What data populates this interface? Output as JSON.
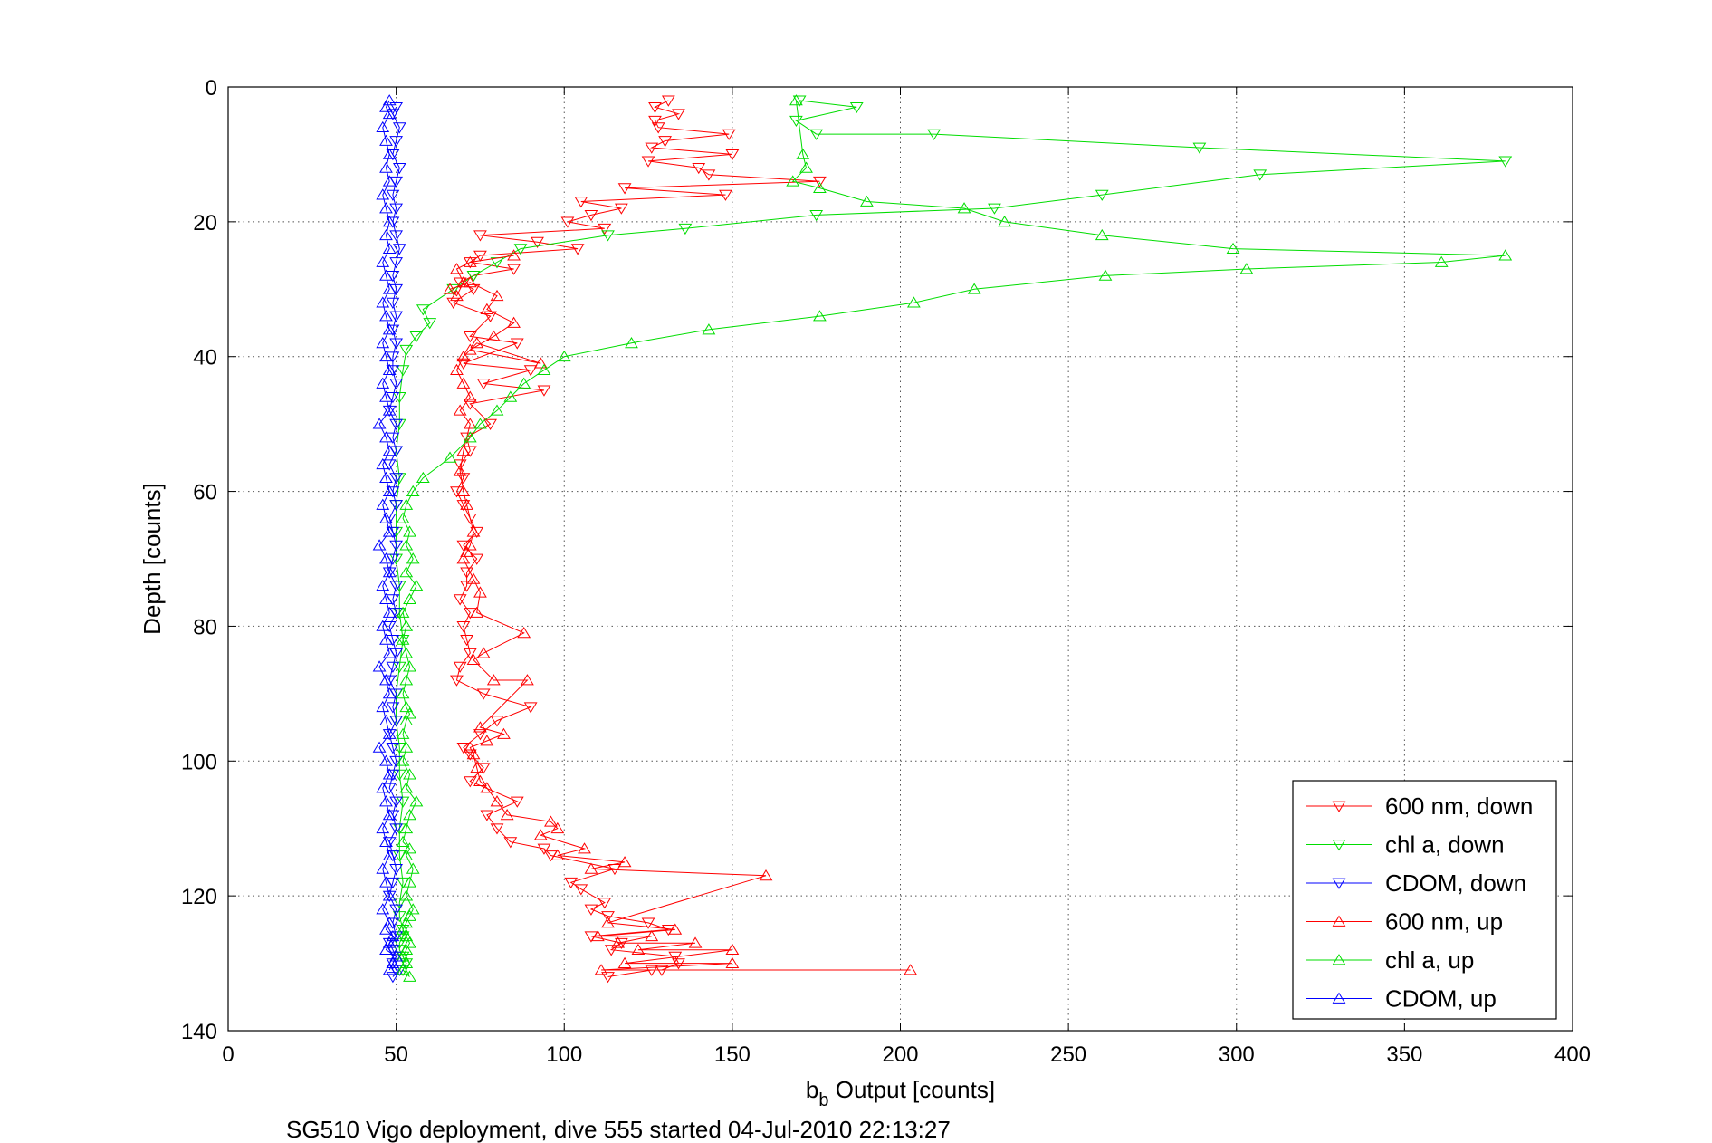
{
  "chart_data": {
    "type": "line",
    "xlabel_main": "b",
    "xlabel_sub": "b",
    "xlabel_rest": " Output [counts]",
    "ylabel": "Depth [counts]",
    "footer": "SG510 Vigo deployment, dive 555 started 04-Jul-2010 22:13:27",
    "xlim": [
      0,
      400
    ],
    "ylim": [
      0,
      140
    ],
    "y_reversed": true,
    "grid": true,
    "legend_position": "bottom-right",
    "x_ticks": [
      "0",
      "50",
      "100",
      "150",
      "200",
      "250",
      "300",
      "350",
      "400"
    ],
    "y_ticks": [
      "0",
      "20",
      "40",
      "60",
      "80",
      "100",
      "120",
      "140"
    ],
    "series": [
      {
        "name": "600 nm, down",
        "color": "#ff0000",
        "marker": "triangle-down",
        "x": [
          131,
          127,
          134,
          127,
          128,
          149,
          130,
          126,
          150,
          125,
          140,
          143,
          176,
          118,
          148,
          105,
          117,
          108,
          101,
          112,
          75,
          92,
          104,
          75,
          72,
          85,
          73,
          69,
          73,
          67,
          78,
          72,
          86,
          70,
          90,
          76,
          94,
          72,
          78,
          71,
          72,
          69,
          70,
          68,
          70,
          72,
          74,
          70,
          74,
          71,
          71,
          69,
          72,
          70,
          71,
          72,
          69,
          68,
          76,
          90,
          80,
          75,
          70,
          72,
          76,
          72,
          86,
          77,
          80,
          84,
          94,
          96,
          115,
          102,
          105,
          112,
          108,
          113,
          125,
          131,
          108,
          117,
          114,
          133,
          134,
          129,
          126,
          113
        ],
        "y": [
          2,
          3,
          4,
          5,
          6,
          7,
          8,
          9,
          10,
          11,
          12,
          13,
          14,
          15,
          16,
          17,
          18,
          19,
          20,
          21,
          22,
          23,
          24,
          25,
          26,
          27,
          28,
          29,
          30,
          32,
          34,
          37,
          38,
          41,
          42,
          44,
          45,
          47,
          50,
          52,
          54,
          56,
          58,
          60,
          62,
          64,
          66,
          68,
          70,
          72,
          74,
          76,
          78,
          80,
          82,
          84,
          86,
          88,
          90,
          92,
          94,
          96,
          98,
          99,
          101,
          103,
          106,
          108,
          110,
          112,
          113,
          114,
          116,
          118,
          119,
          121,
          122,
          123,
          124,
          125,
          126,
          127,
          128,
          129,
          130,
          131,
          131,
          132
        ]
      },
      {
        "name": "chl a, down",
        "color": "#00dd00",
        "marker": "triangle-down",
        "x": [
          170,
          187,
          169,
          175,
          210,
          289,
          380,
          307,
          260,
          228,
          175,
          136,
          113,
          87,
          80,
          73,
          67,
          58,
          60,
          56,
          53,
          52,
          51,
          51,
          50,
          51,
          50,
          50,
          50,
          51,
          51,
          52,
          51,
          50,
          50,
          51,
          51,
          52,
          51,
          51,
          52,
          51,
          51,
          52,
          52,
          51,
          51,
          52,
          53,
          52
        ],
        "y": [
          2,
          3,
          5,
          7,
          7,
          9,
          11,
          13,
          16,
          18,
          19,
          21,
          22,
          24,
          26,
          28,
          30,
          33,
          35,
          37,
          39,
          42,
          46,
          50,
          54,
          58,
          62,
          66,
          70,
          74,
          78,
          82,
          86,
          90,
          94,
          98,
          102,
          106,
          110,
          114,
          118,
          121,
          123,
          125,
          126,
          127,
          128,
          129,
          130,
          131
        ]
      },
      {
        "name": "CDOM, down",
        "color": "#0000ff",
        "marker": "triangle-down",
        "x": [
          50,
          49,
          51,
          50,
          49,
          51,
          50,
          49,
          50,
          49,
          50,
          51,
          50,
          49,
          50,
          49,
          50,
          49,
          50,
          49,
          49,
          50,
          49,
          48,
          50,
          49,
          50,
          48,
          50,
          49,
          50,
          48,
          49,
          50,
          49,
          48,
          50,
          49,
          50,
          48,
          49,
          50,
          49,
          48,
          50,
          49,
          50,
          48,
          49,
          50,
          49,
          48,
          50,
          49,
          50,
          48,
          49,
          50,
          49,
          48,
          50,
          49,
          50,
          48,
          49,
          50,
          49,
          50,
          51,
          49
        ],
        "y": [
          3,
          4,
          6,
          8,
          10,
          12,
          14,
          16,
          18,
          20,
          22,
          24,
          26,
          28,
          30,
          32,
          34,
          36,
          38,
          40,
          42,
          44,
          46,
          48,
          50,
          52,
          54,
          56,
          58,
          60,
          62,
          64,
          66,
          68,
          70,
          72,
          74,
          76,
          78,
          80,
          82,
          84,
          86,
          88,
          90,
          92,
          94,
          96,
          98,
          100,
          102,
          104,
          106,
          108,
          110,
          112,
          114,
          116,
          118,
          120,
          122,
          124,
          126,
          127,
          128,
          129,
          130,
          131,
          131,
          132
        ]
      },
      {
        "name": "600 nm, up",
        "color": "#ff0000",
        "marker": "triangle-up",
        "x": [
          203,
          111,
          150,
          118,
          150,
          122,
          139,
          116,
          126,
          110,
          133,
          113,
          160,
          108,
          118,
          98,
          106,
          93,
          98,
          96,
          83,
          80,
          77,
          75,
          74,
          73,
          72,
          77,
          82,
          75,
          89,
          79,
          73,
          76,
          88,
          74,
          75,
          73,
          70,
          71,
          72,
          73,
          71,
          70,
          69,
          70,
          72,
          69,
          72,
          70,
          68,
          70,
          74,
          93,
          72,
          79,
          85,
          77,
          80,
          72,
          66,
          68,
          70,
          68,
          72,
          85
        ],
        "y": [
          131,
          131,
          130,
          130,
          128,
          128,
          127,
          127,
          126,
          126,
          125,
          124,
          117,
          116,
          115,
          114,
          113,
          111,
          110,
          109,
          108,
          106,
          104,
          103,
          101,
          99,
          98,
          97,
          96,
          95,
          88,
          88,
          85,
          84,
          81,
          78,
          75,
          73,
          70,
          69,
          68,
          66,
          62,
          60,
          57,
          54,
          50,
          48,
          46,
          44,
          42,
          40,
          38,
          41,
          39,
          37,
          35,
          33,
          31,
          29,
          30,
          31,
          29,
          27,
          26,
          25
        ]
      },
      {
        "name": "chl a, up",
        "color": "#00dd00",
        "marker": "triangle-up",
        "x": [
          54,
          52,
          53,
          52,
          53,
          54,
          53,
          52,
          53,
          54,
          55,
          53,
          54,
          55,
          53,
          54,
          52,
          53,
          54,
          56,
          53,
          54,
          52,
          53,
          52,
          53,
          54,
          53,
          52,
          53,
          54,
          53,
          52,
          53,
          52,
          54,
          56,
          53,
          55,
          53,
          54,
          52,
          53,
          55,
          58,
          66,
          72,
          75,
          80,
          84,
          88,
          94,
          100,
          120,
          143,
          176,
          204,
          222,
          261,
          303,
          361,
          380,
          299,
          260,
          231,
          219,
          190,
          176,
          168,
          172,
          171,
          169
        ],
        "y": [
          132,
          131,
          130,
          129,
          128,
          127,
          126,
          125,
          124,
          123,
          122,
          120,
          118,
          116,
          114,
          113,
          112,
          110,
          108,
          106,
          104,
          102,
          100,
          98,
          96,
          94,
          93,
          92,
          90,
          88,
          86,
          84,
          82,
          80,
          78,
          76,
          74,
          72,
          70,
          68,
          66,
          64,
          62,
          60,
          58,
          55,
          52,
          50,
          48,
          46,
          44,
          42,
          40,
          38,
          36,
          34,
          32,
          30,
          28,
          27,
          26,
          25,
          24,
          22,
          20,
          18,
          17,
          15,
          14,
          12,
          10,
          2
        ]
      },
      {
        "name": "CDOM, up",
        "color": "#0000ff",
        "marker": "triangle-up",
        "x": [
          48,
          49,
          50,
          47,
          48,
          49,
          47,
          48,
          46,
          48,
          47,
          46,
          48,
          47,
          46,
          48,
          47,
          46,
          48,
          47,
          45,
          48,
          47,
          46,
          48,
          47,
          45,
          48,
          47,
          46,
          48,
          47,
          46,
          48,
          47,
          45,
          48,
          47,
          46,
          48,
          47,
          46,
          48,
          47,
          45,
          48,
          47,
          46,
          48,
          47,
          46,
          48,
          47,
          46,
          48,
          47,
          46,
          48,
          47,
          48,
          47,
          46,
          48,
          47,
          48,
          47,
          46,
          48,
          47,
          48
        ],
        "y": [
          131,
          130,
          129,
          128,
          127,
          126,
          125,
          124,
          122,
          120,
          118,
          116,
          114,
          112,
          110,
          108,
          106,
          104,
          102,
          100,
          98,
          96,
          94,
          92,
          90,
          88,
          86,
          84,
          82,
          80,
          78,
          76,
          74,
          72,
          70,
          68,
          66,
          64,
          62,
          60,
          58,
          56,
          54,
          52,
          50,
          48,
          46,
          44,
          42,
          40,
          38,
          36,
          34,
          32,
          30,
          28,
          26,
          24,
          22,
          20,
          18,
          16,
          14,
          12,
          10,
          8,
          6,
          4,
          3,
          2
        ]
      }
    ]
  }
}
